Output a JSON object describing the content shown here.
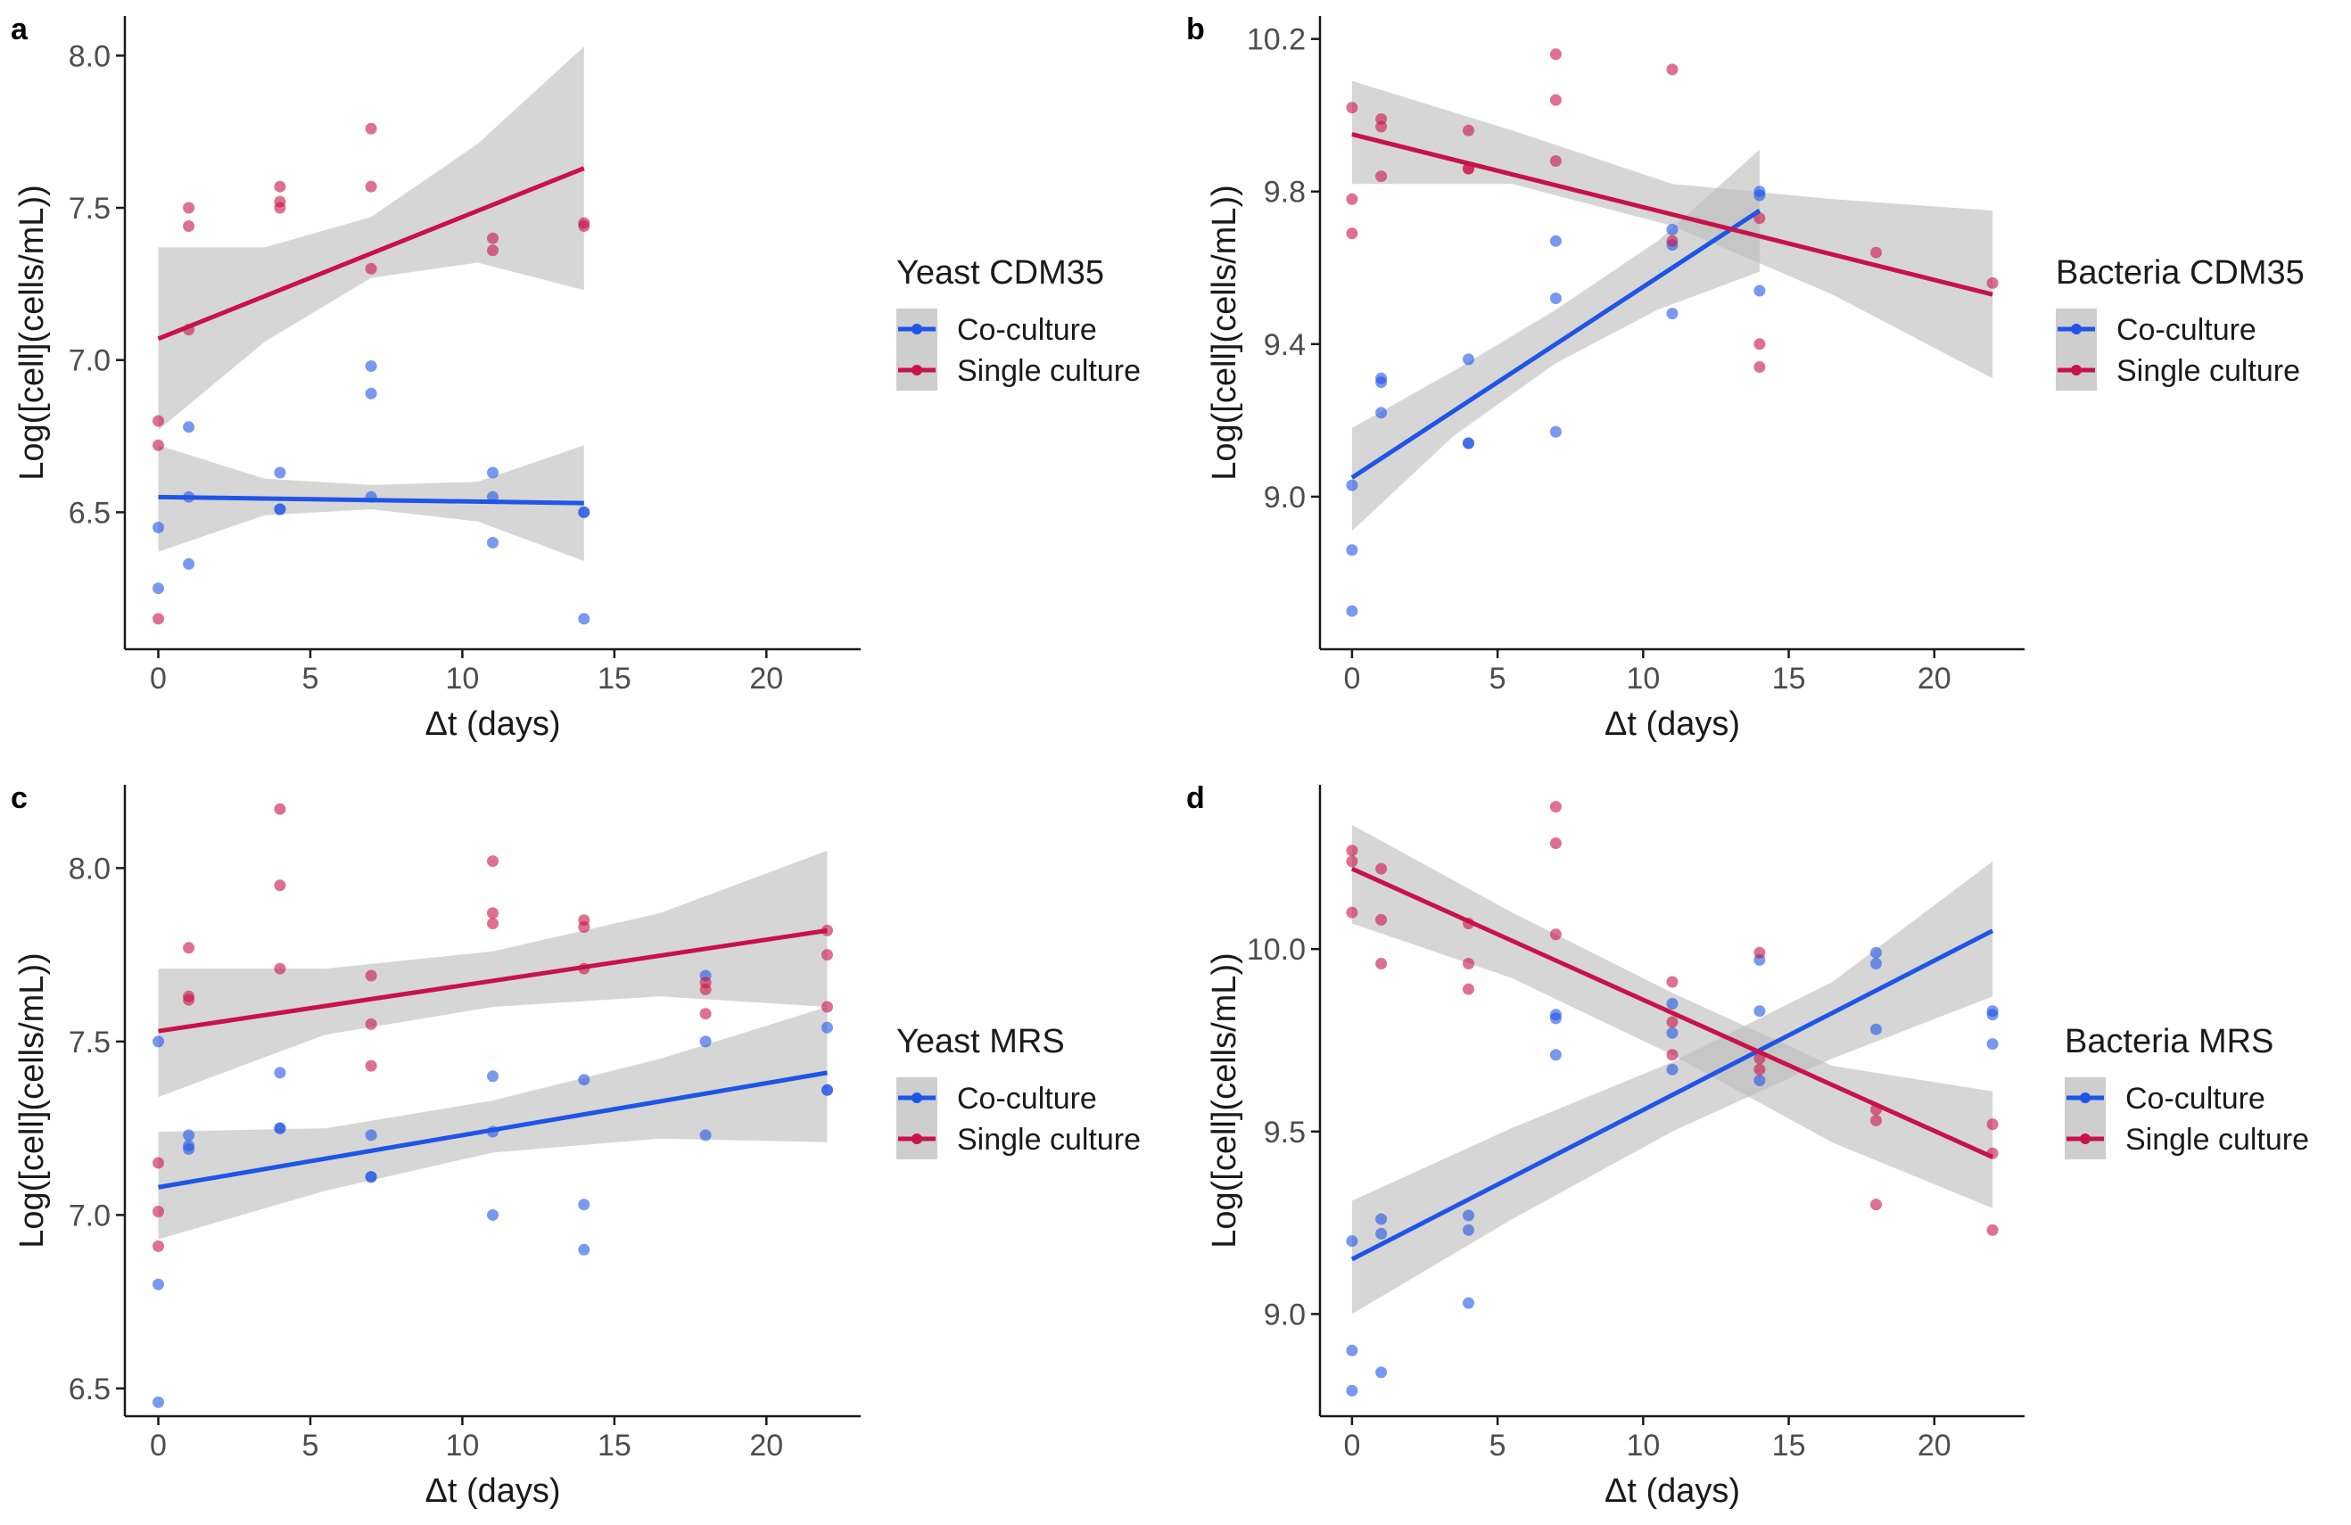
{
  "figure": {
    "colors": {
      "co": "#1f55e6",
      "single": "#c8124a",
      "band": "#bdbdbd",
      "axis": "#1a1a1a"
    },
    "xlabel": "Δt (days)",
    "ylabel": "Log([cell](cells/mL))",
    "legend_labels": [
      "Co-culture",
      "Single culture"
    ]
  },
  "chart_data": [
    {
      "type": "scatter",
      "panel": "a",
      "title": "Yeast CDM35",
      "xlabel": "Δt (days)",
      "ylabel": "Log([cell](cells/mL))",
      "xlim": [
        -1.1,
        23.1
      ],
      "ylim": [
        6.05,
        8.13
      ],
      "xticks": [
        0,
        5,
        10,
        15,
        20
      ],
      "xtick_labels": [
        "0",
        "5",
        "10",
        "15",
        "20"
      ],
      "yticks": [
        6.5,
        7.0,
        7.5,
        8.0
      ],
      "ytick_labels": [
        "6.5",
        "7.0",
        "7.5",
        "8.0"
      ],
      "legend_title": "Yeast CDM35",
      "series": [
        {
          "name": "Co-culture",
          "color": "#1f55e6",
          "points": [
            [
              0,
              6.45
            ],
            [
              0,
              6.25
            ],
            [
              1,
              6.78
            ],
            [
              1,
              6.55
            ],
            [
              1,
              6.33
            ],
            [
              4,
              6.63
            ],
            [
              4,
              6.51
            ],
            [
              4,
              6.51
            ],
            [
              7,
              6.98
            ],
            [
              7,
              6.89
            ],
            [
              7,
              6.55
            ],
            [
              11,
              6.63
            ],
            [
              11,
              6.55
            ],
            [
              11,
              6.4
            ],
            [
              14,
              6.5
            ],
            [
              14,
              6.5
            ],
            [
              14,
              6.15
            ]
          ],
          "fit": {
            "x": [
              0,
              14
            ],
            "y": [
              6.55,
              6.53
            ]
          },
          "band": {
            "x": [
              0,
              3.5,
              7,
              10.5,
              14
            ],
            "lower": [
              6.37,
              6.49,
              6.51,
              6.47,
              6.34
            ],
            "upper": [
              6.72,
              6.61,
              6.59,
              6.6,
              6.72
            ]
          }
        },
        {
          "name": "Single culture",
          "color": "#c8124a",
          "points": [
            [
              0,
              6.8
            ],
            [
              0,
              6.72
            ],
            [
              0,
              6.15
            ],
            [
              1,
              7.5
            ],
            [
              1,
              7.44
            ],
            [
              1,
              7.1
            ],
            [
              4,
              7.57
            ],
            [
              4,
              7.52
            ],
            [
              4,
              7.5
            ],
            [
              7,
              7.76
            ],
            [
              7,
              7.57
            ],
            [
              7,
              7.3
            ],
            [
              11,
              7.4
            ],
            [
              11,
              7.36
            ],
            [
              14,
              7.45
            ],
            [
              14,
              7.44
            ]
          ],
          "fit": {
            "x": [
              0,
              14
            ],
            "y": [
              7.07,
              7.63
            ]
          },
          "band": {
            "x": [
              0,
              3.5,
              7,
              10.5,
              14
            ],
            "lower": [
              6.77,
              7.06,
              7.27,
              7.32,
              7.23
            ],
            "upper": [
              7.37,
              7.37,
              7.47,
              7.71,
              8.03
            ]
          }
        }
      ]
    },
    {
      "type": "scatter",
      "panel": "b",
      "title": "Bacteria CDM35",
      "xlabel": "Δt (days)",
      "ylabel": "Log([cell](cells/mL))",
      "xlim": [
        -1.1,
        23.1
      ],
      "ylim": [
        8.6,
        10.26
      ],
      "xticks": [
        0,
        5,
        10,
        15,
        20
      ],
      "xtick_labels": [
        "0",
        "5",
        "10",
        "15",
        "20"
      ],
      "yticks": [
        9.0,
        9.4,
        9.8,
        10.2
      ],
      "ytick_labels": [
        "9.0",
        "9.4",
        "9.8",
        "10.2"
      ],
      "legend_title": "Bacteria CDM35",
      "series": [
        {
          "name": "Co-culture",
          "color": "#1f55e6",
          "points": [
            [
              0,
              9.03
            ],
            [
              0,
              8.86
            ],
            [
              0,
              8.7
            ],
            [
              1,
              9.31
            ],
            [
              1,
              9.3
            ],
            [
              1,
              9.22
            ],
            [
              4,
              9.36
            ],
            [
              4,
              9.14
            ],
            [
              4,
              9.14
            ],
            [
              7,
              9.67
            ],
            [
              7,
              9.52
            ],
            [
              7,
              9.17
            ],
            [
              11,
              9.7
            ],
            [
              11,
              9.66
            ],
            [
              11,
              9.48
            ],
            [
              14,
              9.8
            ],
            [
              14,
              9.79
            ],
            [
              14,
              9.54
            ]
          ],
          "fit": {
            "x": [
              0,
              14
            ],
            "y": [
              9.05,
              9.75
            ]
          },
          "band": {
            "x": [
              0,
              3.5,
              7,
              10.5,
              14
            ],
            "lower": [
              8.91,
              9.16,
              9.35,
              9.49,
              9.59
            ],
            "upper": [
              9.18,
              9.33,
              9.49,
              9.67,
              9.91
            ]
          }
        },
        {
          "name": "Single culture",
          "color": "#c8124a",
          "points": [
            [
              0,
              10.02
            ],
            [
              0,
              9.78
            ],
            [
              0,
              9.69
            ],
            [
              1,
              9.99
            ],
            [
              1,
              9.97
            ],
            [
              1,
              9.84
            ],
            [
              4,
              9.96
            ],
            [
              4,
              9.86
            ],
            [
              4,
              9.86
            ],
            [
              7,
              10.16
            ],
            [
              7,
              10.04
            ],
            [
              7,
              9.88
            ],
            [
              11,
              10.12
            ],
            [
              11,
              9.67
            ],
            [
              14,
              9.73
            ],
            [
              14,
              9.4
            ],
            [
              14,
              9.34
            ],
            [
              18,
              9.64
            ],
            [
              22,
              9.56
            ]
          ],
          "fit": {
            "x": [
              0,
              22
            ],
            "y": [
              9.95,
              9.53
            ]
          },
          "band": {
            "x": [
              0,
              5.5,
              11,
              16.5,
              22
            ],
            "lower": [
              9.82,
              9.82,
              9.71,
              9.53,
              9.31
            ],
            "upper": [
              10.09,
              9.96,
              9.82,
              9.78,
              9.75
            ]
          }
        }
      ]
    },
    {
      "type": "scatter",
      "panel": "c",
      "title": "Yeast MRS",
      "xlabel": "Δt (days)",
      "ylabel": "Log([cell](cells/mL))",
      "xlim": [
        -1.1,
        23.1
      ],
      "ylim": [
        6.42,
        8.24
      ],
      "xticks": [
        0,
        5,
        10,
        15,
        20
      ],
      "xtick_labels": [
        "0",
        "5",
        "10",
        "15",
        "20"
      ],
      "yticks": [
        6.5,
        7.0,
        7.5,
        8.0
      ],
      "ytick_labels": [
        "6.5",
        "7.0",
        "7.5",
        "8.0"
      ],
      "legend_title": "Yeast MRS",
      "series": [
        {
          "name": "Co-culture",
          "color": "#1f55e6",
          "points": [
            [
              0,
              7.5
            ],
            [
              0,
              6.8
            ],
            [
              0,
              6.46
            ],
            [
              1,
              7.23
            ],
            [
              1,
              7.2
            ],
            [
              1,
              7.19
            ],
            [
              4,
              7.41
            ],
            [
              4,
              7.25
            ],
            [
              4,
              7.25
            ],
            [
              7,
              7.23
            ],
            [
              7,
              7.11
            ],
            [
              7,
              7.11
            ],
            [
              11,
              7.4
            ],
            [
              11,
              7.24
            ],
            [
              11,
              7.0
            ],
            [
              14,
              7.39
            ],
            [
              14,
              7.03
            ],
            [
              14,
              6.9
            ],
            [
              18,
              7.69
            ],
            [
              18,
              7.5
            ],
            [
              18,
              7.23
            ],
            [
              22,
              7.54
            ],
            [
              22,
              7.36
            ],
            [
              22,
              7.36
            ]
          ],
          "fit": {
            "x": [
              0,
              22
            ],
            "y": [
              7.08,
              7.41
            ]
          },
          "band": {
            "x": [
              0,
              5.5,
              11,
              16.5,
              22
            ],
            "lower": [
              6.93,
              7.07,
              7.18,
              7.22,
              7.21
            ],
            "upper": [
              7.24,
              7.25,
              7.33,
              7.45,
              7.6
            ]
          }
        },
        {
          "name": "Single culture",
          "color": "#c8124a",
          "points": [
            [
              0,
              7.15
            ],
            [
              0,
              7.01
            ],
            [
              0,
              6.91
            ],
            [
              1,
              7.77
            ],
            [
              1,
              7.63
            ],
            [
              1,
              7.62
            ],
            [
              4,
              8.17
            ],
            [
              4,
              7.95
            ],
            [
              4,
              7.71
            ],
            [
              7,
              7.69
            ],
            [
              7,
              7.55
            ],
            [
              7,
              7.43
            ],
            [
              11,
              8.02
            ],
            [
              11,
              7.87
            ],
            [
              11,
              7.84
            ],
            [
              14,
              7.85
            ],
            [
              14,
              7.83
            ],
            [
              14,
              7.71
            ],
            [
              18,
              7.67
            ],
            [
              18,
              7.65
            ],
            [
              18,
              7.58
            ],
            [
              22,
              7.82
            ],
            [
              22,
              7.75
            ],
            [
              22,
              7.6
            ]
          ],
          "fit": {
            "x": [
              0,
              22
            ],
            "y": [
              7.53,
              7.82
            ]
          },
          "band": {
            "x": [
              0,
              5.5,
              11,
              16.5,
              22
            ],
            "lower": [
              7.34,
              7.52,
              7.6,
              7.63,
              7.6
            ],
            "upper": [
              7.71,
              7.71,
              7.76,
              7.87,
              8.05
            ]
          }
        }
      ]
    },
    {
      "type": "scatter",
      "panel": "d",
      "title": "Bacteria MRS",
      "xlabel": "Δt (days)",
      "ylabel": "Log([cell](cells/mL))",
      "xlim": [
        -1.1,
        23.1
      ],
      "ylim": [
        8.72,
        10.45
      ],
      "xticks": [
        0,
        5,
        10,
        15,
        20
      ],
      "xtick_labels": [
        "0",
        "5",
        "10",
        "15",
        "20"
      ],
      "yticks": [
        9.0,
        9.5,
        10.0
      ],
      "ytick_labels": [
        "9.0",
        "9.5",
        "10.0"
      ],
      "legend_title": "Bacteria MRS",
      "series": [
        {
          "name": "Co-culture",
          "color": "#1f55e6",
          "points": [
            [
              0,
              9.2
            ],
            [
              0,
              8.9
            ],
            [
              0,
              8.79
            ],
            [
              1,
              9.26
            ],
            [
              1,
              9.22
            ],
            [
              1,
              8.84
            ],
            [
              4,
              9.27
            ],
            [
              4,
              9.23
            ],
            [
              4,
              9.03
            ],
            [
              7,
              9.82
            ],
            [
              7,
              9.81
            ],
            [
              7,
              9.71
            ],
            [
              11,
              9.85
            ],
            [
              11,
              9.77
            ],
            [
              11,
              9.67
            ],
            [
              14,
              9.97
            ],
            [
              14,
              9.83
            ],
            [
              14,
              9.64
            ],
            [
              18,
              9.99
            ],
            [
              18,
              9.96
            ],
            [
              18,
              9.78
            ],
            [
              22,
              9.83
            ],
            [
              22,
              9.82
            ],
            [
              22,
              9.74
            ]
          ],
          "fit": {
            "x": [
              0,
              22
            ],
            "y": [
              9.15,
              10.05
            ]
          },
          "band": {
            "x": [
              0,
              5.5,
              11,
              16.5,
              22
            ],
            "lower": [
              9.0,
              9.26,
              9.5,
              9.7,
              9.87
            ],
            "upper": [
              9.31,
              9.51,
              9.69,
              9.91,
              10.24
            ]
          }
        },
        {
          "name": "Single culture",
          "color": "#c8124a",
          "points": [
            [
              0,
              10.27
            ],
            [
              0,
              10.24
            ],
            [
              0,
              10.1
            ],
            [
              1,
              10.22
            ],
            [
              1,
              10.08
            ],
            [
              1,
              9.96
            ],
            [
              4,
              10.07
            ],
            [
              4,
              9.96
            ],
            [
              4,
              9.89
            ],
            [
              7,
              10.39
            ],
            [
              7,
              10.29
            ],
            [
              7,
              10.04
            ],
            [
              11,
              9.91
            ],
            [
              11,
              9.8
            ],
            [
              11,
              9.71
            ],
            [
              14,
              9.99
            ],
            [
              14,
              9.7
            ],
            [
              14,
              9.67
            ],
            [
              18,
              9.56
            ],
            [
              18,
              9.53
            ],
            [
              18,
              9.3
            ],
            [
              22,
              9.52
            ],
            [
              22,
              9.44
            ],
            [
              22,
              9.23
            ]
          ],
          "fit": {
            "x": [
              0,
              22
            ],
            "y": [
              10.22,
              9.43
            ]
          },
          "band": {
            "x": [
              0,
              5.5,
              11,
              16.5,
              22
            ],
            "lower": [
              10.07,
              9.92,
              9.71,
              9.47,
              9.29
            ],
            "upper": [
              10.34,
              10.1,
              9.88,
              9.68,
              9.61
            ]
          }
        }
      ]
    }
  ]
}
